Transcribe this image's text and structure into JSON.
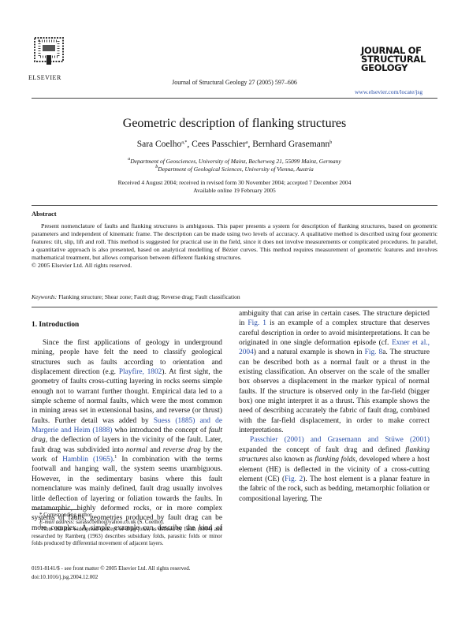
{
  "header": {
    "publisher": "ELSEVIER",
    "citation": "Journal of Structural Geology 27 (2005) 597–606",
    "journal_logo": [
      "JOURNAL OF",
      "STRUCTURAL",
      "GEOLOGY"
    ],
    "url": "www.elsevier.com/locate/jsg"
  },
  "article": {
    "title": "Geometric description of flanking structures",
    "authors": [
      {
        "name": "Sara Coelho",
        "mark": "a,*"
      },
      {
        "name": "Cees Passchier",
        "mark": "a"
      },
      {
        "name": "Bernhard Grasemann",
        "mark": "b"
      }
    ],
    "separator": ", ",
    "affiliations": [
      {
        "mark": "a",
        "text": "Department of Geosciences, University of Mainz, Becherweg 21, 55099 Mainz, Germany"
      },
      {
        "mark": "b",
        "text": "Department of Geological Sciences, University of Vienna, Austria"
      }
    ],
    "dates": [
      "Received 4 August 2004; received in revised form 30 November 2004; accepted 7 December 2004",
      "Available online 19 February 2005"
    ]
  },
  "abstract": {
    "heading": "Abstract",
    "text": "Present nomenclature of faults and flanking structures is ambiguous. This paper presents a system for description of flanking structures, based on geometric parameters and independent of kinematic frame. The description can be made using two levels of accuracy. A qualitative method is described using four geometric features: tilt, slip, lift and roll. This method is suggested for practical use in the field, since it does not involve measurements or complicated procedures. In parallel, a quantitative approach is also presented, based on analytical modelling of Bézier curves. This method requires measurement of geometric features and involves mathematical treatment, but allows comparison between different flanking structures.",
    "copyright": "© 2005 Elsevier Ltd. All rights reserved.",
    "keywords_label": "Keywords:",
    "keywords": "Flanking structure; Shear zone; Fault drag; Reverse drag; Fault classification"
  },
  "section": {
    "heading": "1. Introduction",
    "paragraphs": [
      [
        "Since the first applications of geology in underground mining, people have felt the need to classify geological structures such as faults according to orientation and displacement direction (e.g. ",
        "Playfire, 1802",
        "). At first sight, the geometry of faults cross-cutting layering in rocks seems simple enough not to warrant further thought. Empirical data led to a simple scheme of normal faults, which were the most common in mining areas set in extensional basins, and reverse (or thrust) faults. Further detail was added by ",
        "Suess (1885) and de Margerie and Heim (1888)",
        " who introduced the concept of ",
        "fault drag",
        ", the deflection of layers in the vicinity of the fault. Later, fault drag was subdivided into ",
        "normal",
        " and ",
        "reverse drag",
        " by the work of ",
        "Hamblin (1965)",
        ".",
        "1",
        " In combination with the terms footwall and hanging wall, the system seems unambiguous. However, in the sedimentary basins where this fault nomenclature was mainly defined, fault drag usually involves little deflection of layering or foliation towards the faults. In metamorphic, highly deformed rocks, or in more complex systems of faults, geometries produced by fault drag can be more complex. A simple example can describe the kind of ambiguity that can arise in certain cases. The structure depicted in ",
        "Fig. 1",
        " is an example of a complex structure that deserves careful description in order to avoid misinterpretations. It can be originated in one single deformation episode (cf. ",
        "Exner et al., 2004",
        ") and a natural example is shown in ",
        "Fig. 8",
        "a. The structure can be described both as a normal fault or a thrust in the existing classification. An observer on the scale of the smaller box observes a displacement in the marker typical of normal faults. If the structure is observed only in the far-field (bigger box) one might interpret it as a thrust. This example shows the need of describing accurately the fabric of fault drag, combined with the far-field displacement, in order to make correct interpretations."
      ],
      [
        "Passchier (2001) and Grasemann and Stüwe (2001)",
        " expanded the concept of fault drag and defined ",
        "flanking structures",
        " also known as ",
        "flanking folds",
        ", developed where a host element (HE) is deflected in the vicinity of a cross-cutting element (CE) (",
        "Fig. 2",
        "). The host element is a planar feature in the fabric of the rock, such as bedding, metamorphic foliation or compositional layering. The"
      ]
    ]
  },
  "footnotes": {
    "corresponding": "* Corresponding author",
    "email_label": "E-mail address:",
    "email": "sarasscoelho@yahoo.co.uk (S. Coelho).",
    "note_mark": "1",
    "note": [
      "Note that the widespread concept of ",
      "drag folds",
      ", as defined by Leith (1914) and researched by Ramberg (1963) describes subsidiary folds, parasitic folds or minor folds produced by differential movement of adjacent layers."
    ]
  },
  "footer": [
    "0191-8141/$ - see front matter © 2005 Elsevier Ltd. All rights reserved.",
    "doi:10.1016/j.jsg.2004.12.002"
  ]
}
